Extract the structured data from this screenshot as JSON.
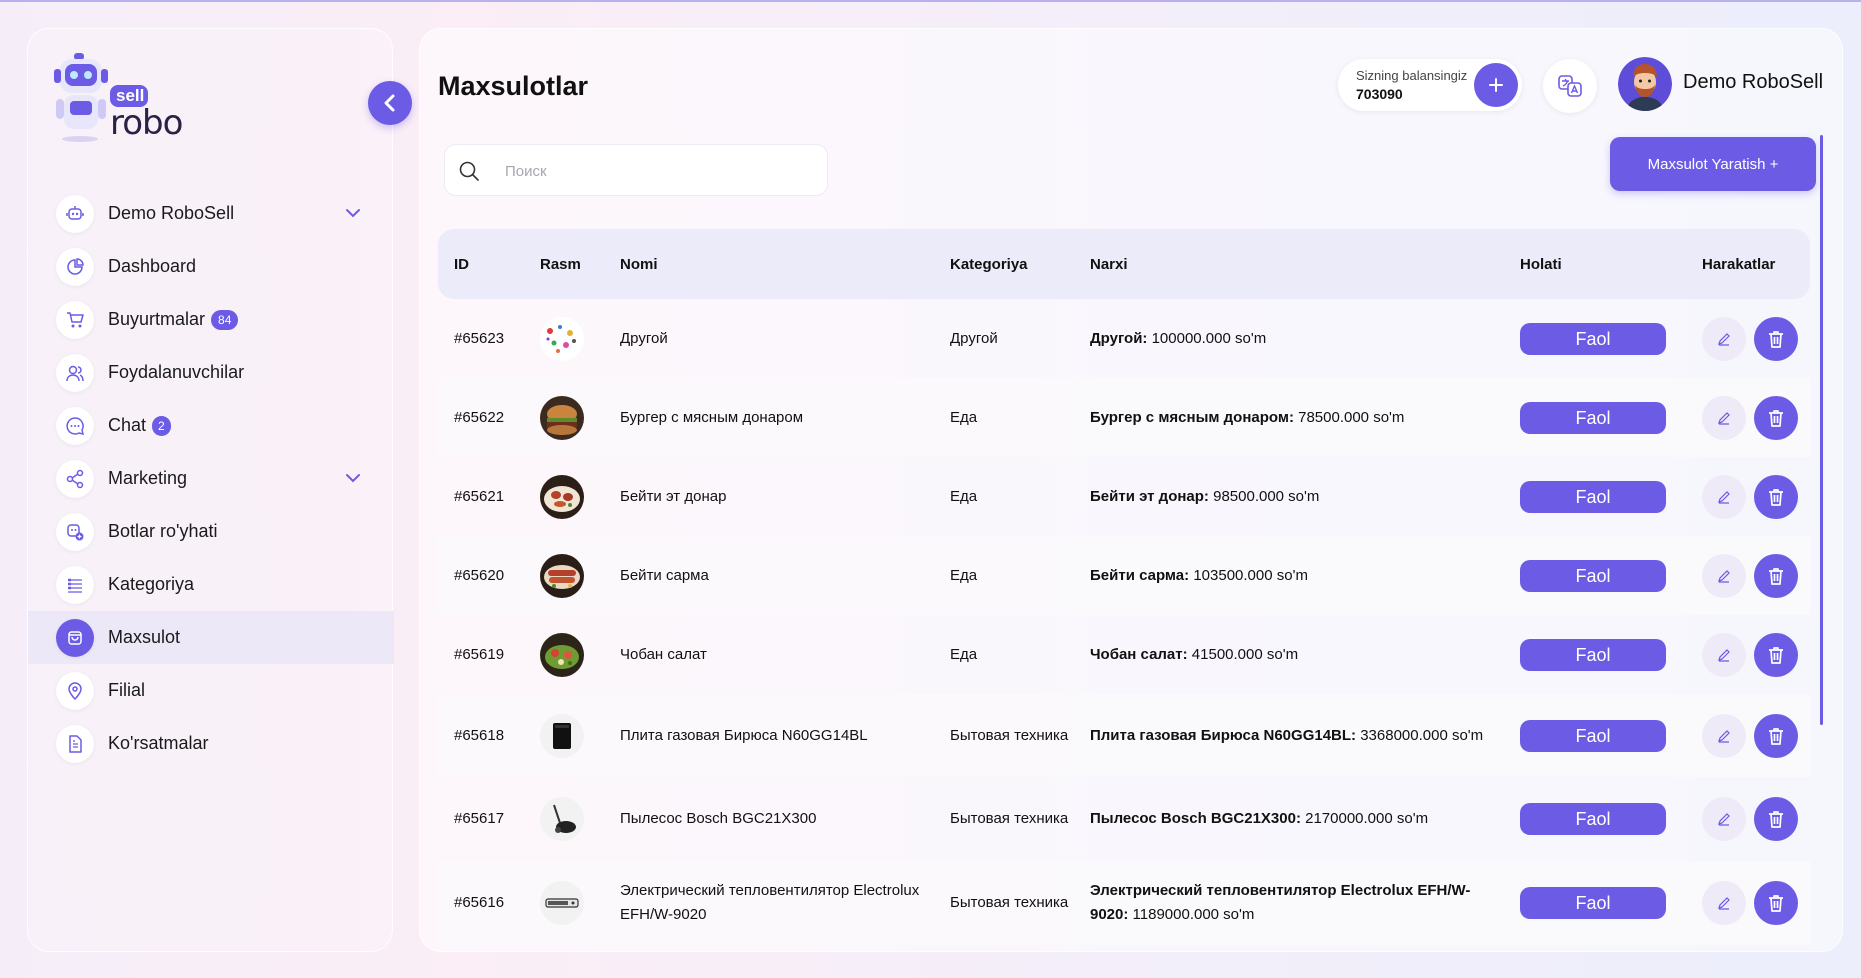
{
  "brand": {
    "small": "sell",
    "large": "robo"
  },
  "sidebar": {
    "items": [
      {
        "label": "Demo RoboSell",
        "icon": "robot-icon",
        "dropdown": true
      },
      {
        "label": "Dashboard",
        "icon": "pie-chart-icon"
      },
      {
        "label": "Buyurtmalar",
        "icon": "cart-icon",
        "badge": "84"
      },
      {
        "label": "Foydalanuvchilar",
        "icon": "users-icon"
      },
      {
        "label": "Chat",
        "icon": "chat-icon",
        "badge": "2"
      },
      {
        "label": "Marketing",
        "icon": "share-icon",
        "dropdown": true
      },
      {
        "label": "Botlar ro'yhati",
        "icon": "bot-list-icon"
      },
      {
        "label": "Kategoriya",
        "icon": "list-icon"
      },
      {
        "label": "Maxsulot",
        "icon": "box-icon",
        "active": true
      },
      {
        "label": "Filial",
        "icon": "location-icon"
      },
      {
        "label": "Ko'rsatmalar",
        "icon": "document-icon"
      }
    ]
  },
  "header": {
    "title": "Maxsulotlar",
    "balance_label": "Sizning balansingiz",
    "balance_value": "703090",
    "user_name": "Demo RoboSell"
  },
  "search": {
    "placeholder": "Поиск",
    "value": ""
  },
  "create_button": "Maxsulot Yaratish +",
  "table": {
    "columns": [
      "ID",
      "Rasm",
      "Nomi",
      "Kategoriya",
      "Narxi",
      "Holati",
      "Harakatlar"
    ],
    "rows": [
      {
        "id": "#65623",
        "name": "Другой",
        "category": "Другой",
        "price_name": "Другой:",
        "price_value": " 100000.000 so'm",
        "status": "Faol"
      },
      {
        "id": "#65622",
        "name": "Бургер с мясным донаром",
        "category": "Еда",
        "price_name": "Бургер с мясным донаром:",
        "price_value": " 78500.000 so'm",
        "status": "Faol"
      },
      {
        "id": "#65621",
        "name": "Бейти эт донар",
        "category": "Еда",
        "price_name": "Бейти эт донар:",
        "price_value": " 98500.000 so'm",
        "status": "Faol"
      },
      {
        "id": "#65620",
        "name": "Бейти сарма",
        "category": "Еда",
        "price_name": "Бейти сарма:",
        "price_value": " 103500.000 so'm",
        "status": "Faol"
      },
      {
        "id": "#65619",
        "name": "Чобан салат",
        "category": "Еда",
        "price_name": "Чобан салат:",
        "price_value": " 41500.000 so'm",
        "status": "Faol"
      },
      {
        "id": "#65618",
        "name": "Плита газовая Бирюса N60GG14BL",
        "category": "Бытовая техника",
        "price_name": "Плита газовая Бирюса N60GG14BL:",
        "price_value": " 3368000.000 so'm",
        "status": "Faol"
      },
      {
        "id": "#65617",
        "name": "Пылесос Bosch BGC21X300",
        "category": "Бытовая техника",
        "price_name": "Пылесос Bosch BGC21X300:",
        "price_value": " 2170000.000 so'm",
        "status": "Faol"
      },
      {
        "id": "#65616",
        "name": "Электрический тепловентилятор Electrolux EFH/W-9020",
        "category": "Бытовая техника",
        "price_name": "Электрический тепловентилятор Electrolux EFH/W-9020:",
        "price_value": " 1189000.000 so'm",
        "status": "Faol"
      }
    ]
  },
  "colors": {
    "accent": "#6c5be5",
    "header_bg": "#ebebfa"
  }
}
